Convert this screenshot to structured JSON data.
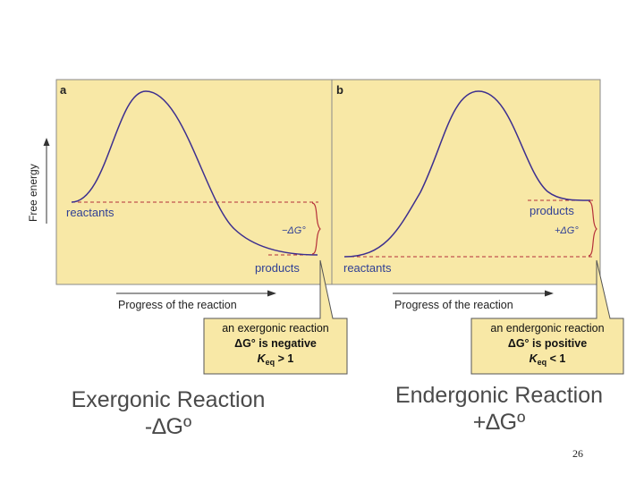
{
  "panels": {
    "a": {
      "label": "a",
      "start_label": "reactants",
      "end_label": "products",
      "delta_label": "−ΔG°",
      "note": {
        "line1": "an exergonic reaction",
        "line2": "ΔG° is negative",
        "line3_prefix": "K",
        "line3_sub": "eq",
        "line3_suffix": " > 1"
      }
    },
    "b": {
      "label": "b",
      "start_label": "reactants",
      "end_label": "products",
      "delta_label": "+ΔG°",
      "note": {
        "line1": "an endergonic reaction",
        "line2": "ΔG° is positive",
        "line3_prefix": "K",
        "line3_sub": "eq",
        "line3_suffix": " < 1"
      }
    }
  },
  "axes": {
    "y_label": "Free energy",
    "x_label": "Progress of the reaction"
  },
  "captions": {
    "left_title": "Exergonic Reaction",
    "left_symbol": "-∆Gº",
    "right_title": "Endergonic Reaction",
    "right_symbol": "+∆Gº"
  },
  "page_number": "26",
  "colors": {
    "panel_bg": "#f8e8a6",
    "curve": "#3d2f8f",
    "dashed": "#b5303a",
    "label_text": "#2f3f95",
    "brace": "#b5303a"
  }
}
